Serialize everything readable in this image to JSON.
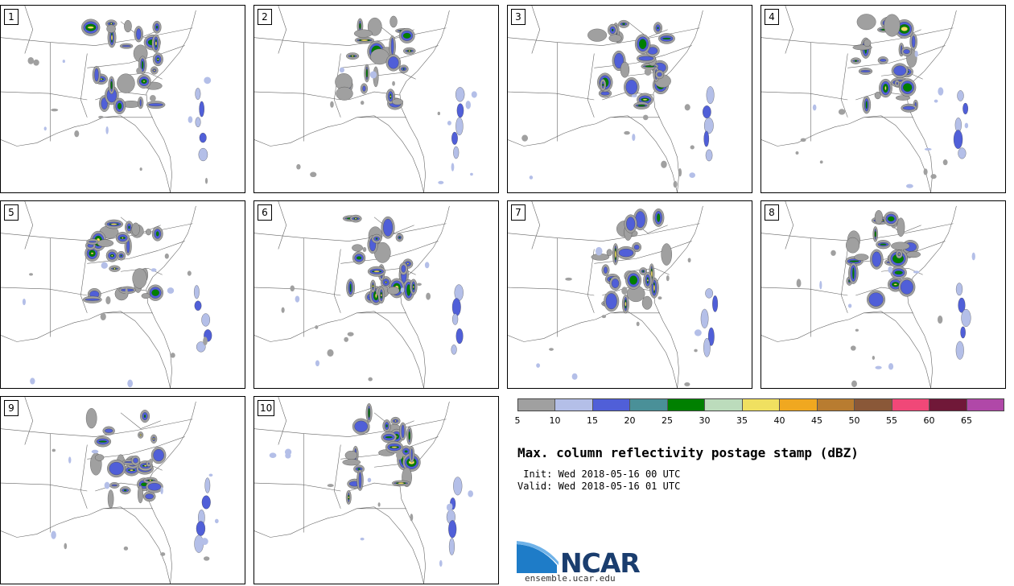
{
  "panels": [
    {
      "label": "1"
    },
    {
      "label": "2"
    },
    {
      "label": "3"
    },
    {
      "label": "4"
    },
    {
      "label": "5"
    },
    {
      "label": "6"
    },
    {
      "label": "7"
    },
    {
      "label": "8"
    },
    {
      "label": "9"
    },
    {
      "label": "10"
    }
  ],
  "colorbar": {
    "colors": [
      "#a0a0a0",
      "#b4bfe8",
      "#505fd8",
      "#4a9098",
      "#008000",
      "#bcdcbc",
      "#f0e060",
      "#f0a820",
      "#b87c30",
      "#8a5838",
      "#f04878",
      "#701838",
      "#b048a8"
    ],
    "tick_labels": [
      "5",
      "10",
      "15",
      "20",
      "25",
      "30",
      "35",
      "40",
      "45",
      "50",
      "55",
      "60",
      "65"
    ]
  },
  "title": "Max. column reflectivity postage stamp (dBZ)",
  "init_line": " Init: Wed 2018-05-16 00 UTC",
  "valid_line": "Valid: Wed 2018-05-16 01 UTC",
  "logo": {
    "text": "NCAR",
    "url": "ensemble.ucar.edu"
  }
}
